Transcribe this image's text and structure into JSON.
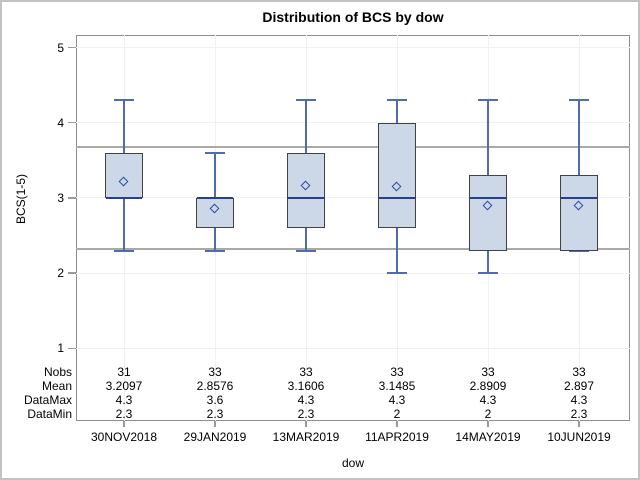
{
  "title": "Distribution of BCS by dow",
  "colors": {
    "box_fill": "#ccd7e8",
    "box_border": "#424242",
    "whisker": "#4f6cae",
    "median": "#24408e",
    "mean_marker": "#2c4da0",
    "gridline": "#f1f1f1",
    "reference_line": "#a9a9a9",
    "frame_border": "#8f8f8f",
    "tick": "#9a9a9a",
    "text": "#000000",
    "canvas_border": "#c2c2c2"
  },
  "chart_data": {
    "type": "boxplot",
    "title": "Distribution of BCS by dow",
    "xlabel": "dow",
    "ylabel": "BCS(1-5)",
    "y_ticks": [
      5,
      4,
      3,
      2,
      1
    ],
    "ylim": [
      1,
      5
    ],
    "grid": true,
    "categories": [
      "30NOV2018",
      "29JAN2019",
      "13MAR2019",
      "11APR2019",
      "14MAY2019",
      "10JUN2019"
    ],
    "boxes": [
      {
        "whisker_low": 2.3,
        "q1": 3.0,
        "median": 3.0,
        "q3": 3.6,
        "whisker_high": 4.3,
        "mean": 3.2097
      },
      {
        "whisker_low": 2.3,
        "q1": 2.6,
        "median": 3.0,
        "q3": 3.0,
        "whisker_high": 3.6,
        "mean": 2.8576
      },
      {
        "whisker_low": 2.3,
        "q1": 2.6,
        "median": 3.0,
        "q3": 3.6,
        "whisker_high": 4.3,
        "mean": 3.1606
      },
      {
        "whisker_low": 2.0,
        "q1": 2.6,
        "median": 3.0,
        "q3": 4.0,
        "whisker_high": 4.3,
        "mean": 3.1485
      },
      {
        "whisker_low": 2.0,
        "q1": 2.3,
        "median": 3.0,
        "q3": 3.3,
        "whisker_high": 4.3,
        "mean": 2.8909
      },
      {
        "whisker_low": 2.3,
        "q1": 2.3,
        "median": 3.0,
        "q3": 3.3,
        "whisker_high": 4.3,
        "mean": 2.897
      }
    ],
    "reference_lines": [
      3.68,
      2.32
    ],
    "stats_table": {
      "row_labels": [
        "Nobs",
        "Mean",
        "DataMax",
        "DataMin"
      ],
      "rows": {
        "Nobs": [
          "31",
          "33",
          "33",
          "33",
          "33",
          "33"
        ],
        "Mean": [
          "3.2097",
          "2.8576",
          "3.1606",
          "3.1485",
          "2.8909",
          "2.897"
        ],
        "DataMax": [
          "4.3",
          "3.6",
          "4.3",
          "4.3",
          "4.3",
          "4.3"
        ],
        "DataMin": [
          "2.3",
          "2.3",
          "2.3",
          "2",
          "2",
          "2.3"
        ]
      }
    }
  }
}
